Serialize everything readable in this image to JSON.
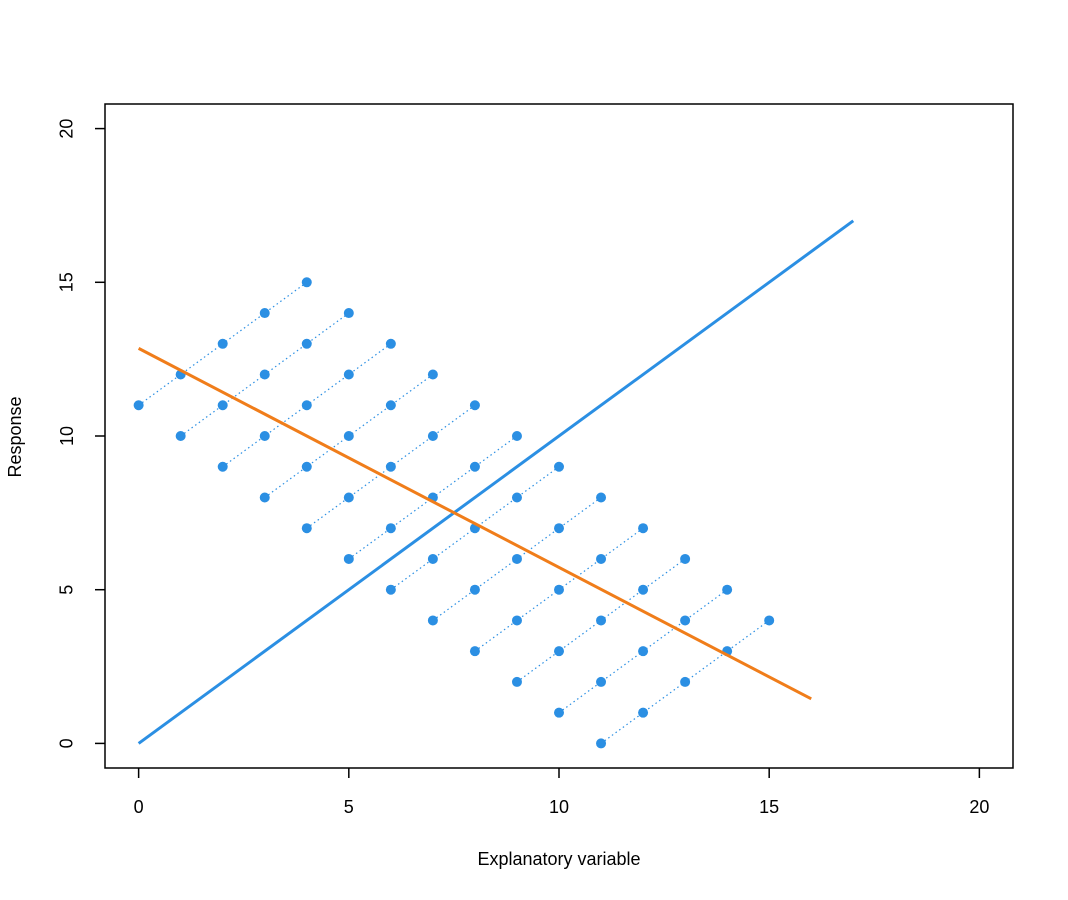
{
  "chart_data": {
    "type": "scatter",
    "xlabel": "Explanatory variable",
    "ylabel": "Response",
    "xlim": [
      -0.8,
      20.8
    ],
    "ylim": [
      -0.8,
      20.8
    ],
    "xticks": [
      0,
      5,
      10,
      15,
      20
    ],
    "yticks": [
      0,
      5,
      10,
      15,
      20
    ],
    "linestyle": "dotted",
    "series": [
      {
        "color": "#2b8fe3",
        "x": [
          0,
          1,
          2,
          3,
          4
        ],
        "y": [
          11,
          12,
          13,
          14,
          15
        ]
      },
      {
        "color": "#2b8fe3",
        "x": [
          1,
          2,
          3,
          4,
          5
        ],
        "y": [
          10,
          11,
          12,
          13,
          14
        ]
      },
      {
        "color": "#2b8fe3",
        "x": [
          2,
          3,
          4,
          5,
          6
        ],
        "y": [
          9,
          10,
          11,
          12,
          13
        ]
      },
      {
        "color": "#2b8fe3",
        "x": [
          3,
          4,
          5,
          6,
          7
        ],
        "y": [
          8,
          9,
          10,
          11,
          12
        ]
      },
      {
        "color": "#2b8fe3",
        "x": [
          4,
          5,
          6,
          7,
          8
        ],
        "y": [
          7,
          8,
          9,
          10,
          11
        ]
      },
      {
        "color": "#2b8fe3",
        "x": [
          5,
          6,
          7,
          8,
          9
        ],
        "y": [
          6,
          7,
          8,
          9,
          10
        ]
      },
      {
        "color": "#2b8fe3",
        "x": [
          6,
          7,
          8,
          9,
          10
        ],
        "y": [
          5,
          6,
          7,
          8,
          9
        ]
      },
      {
        "color": "#2b8fe3",
        "x": [
          7,
          8,
          9,
          10,
          11
        ],
        "y": [
          4,
          5,
          6,
          7,
          8
        ]
      },
      {
        "color": "#2b8fe3",
        "x": [
          8,
          9,
          10,
          11,
          12
        ],
        "y": [
          3,
          4,
          5,
          6,
          7
        ]
      },
      {
        "color": "#2b8fe3",
        "x": [
          9,
          10,
          11,
          12,
          13
        ],
        "y": [
          2,
          3,
          4,
          5,
          6
        ]
      },
      {
        "color": "#2b8fe3",
        "x": [
          10,
          11,
          12,
          13,
          14
        ],
        "y": [
          1,
          2,
          3,
          4,
          5
        ]
      },
      {
        "color": "#2b8fe3",
        "x": [
          11,
          12,
          13,
          14,
          15
        ],
        "y": [
          0,
          1,
          2,
          3,
          4
        ]
      }
    ],
    "lines": [
      {
        "color": "#2b8fe3",
        "x": [
          0,
          17
        ],
        "y": [
          0,
          17
        ]
      },
      {
        "color": "#f07d1a",
        "x": [
          0,
          16
        ],
        "y": [
          12.85,
          1.45
        ]
      }
    ]
  }
}
